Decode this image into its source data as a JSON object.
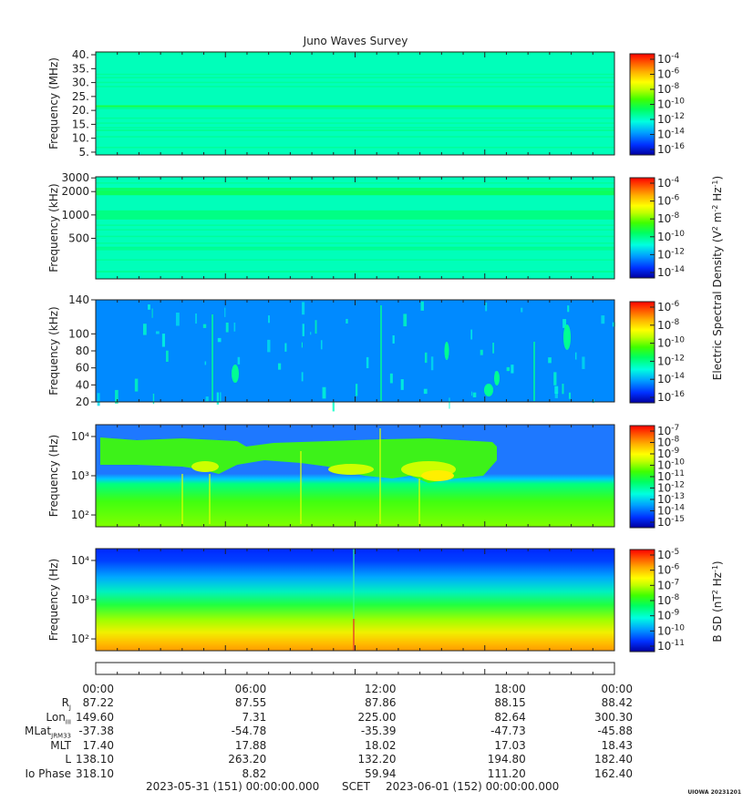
{
  "chart_data": {
    "type": "heatmap",
    "title": "Juno Waves Survey",
    "shared_ylabel": "Electric Spectral Density (V² m⁻² Hz⁻¹)",
    "colormap": [
      "#0000a0",
      "#0030ff",
      "#00a0ff",
      "#00ffe0",
      "#00ff60",
      "#40ff00",
      "#c0ff00",
      "#ffff00",
      "#ffb000",
      "#ff5000",
      "#ff0000"
    ],
    "panels": [
      {
        "ylabel": "Frequency (MHz)",
        "yscale": "linear",
        "ylim": [
          4,
          41
        ],
        "yticks": [
          5,
          10,
          15,
          20,
          25,
          30,
          35,
          40
        ],
        "yticklabels": [
          "5.",
          "10.",
          "15.",
          "20.",
          "25.",
          "30.",
          "35.",
          "40."
        ],
        "background_level": 0.33,
        "bands": [
          {
            "y": 21.5,
            "level": 0.45,
            "width": 2
          }
        ],
        "cb_ticks": [
          "-4",
          "-6",
          "-8",
          "-10",
          "-12",
          "-14",
          "-16"
        ],
        "cb_label": ""
      },
      {
        "ylabel": "Frequency (kHz)",
        "yscale": "log",
        "ylim": [
          150,
          3100
        ],
        "yticks": [
          500,
          1000,
          2000,
          3000
        ],
        "yticklabels": [
          "500",
          "1000",
          "2000",
          "3000"
        ],
        "background_level": 0.33,
        "bands": [
          {
            "y": 2000,
            "level": 0.42,
            "width": 8
          },
          {
            "y": 1000,
            "level": 0.38,
            "width": 10
          }
        ],
        "cb_ticks": [
          "-4",
          "-6",
          "-8",
          "-10",
          "-12",
          "-14"
        ],
        "cb_label": ""
      },
      {
        "ylabel": "Frequency (kHz)",
        "yscale": "linear",
        "ylim": [
          20,
          140
        ],
        "yticks": [
          20,
          40,
          60,
          80,
          100,
          140
        ],
        "yticklabels": [
          "20",
          "40",
          "60",
          "80",
          "100",
          "140"
        ],
        "background_level": 0.18,
        "bands": [],
        "cb_ticks": [
          "-6",
          "-8",
          "-10",
          "-12",
          "-14",
          "-16"
        ],
        "cb_label": ""
      },
      {
        "ylabel": "Frequency (Hz)",
        "yscale": "log",
        "ylim": [
          50,
          20000
        ],
        "yticks": [
          100,
          1000,
          10000
        ],
        "yticklabels": [
          "10²",
          "10³",
          "10⁴"
        ],
        "background_level": 0.22,
        "bands": [],
        "cb_ticks": [
          "-7",
          "-8",
          "-9",
          "-10",
          "-11",
          "-12",
          "-13",
          "-14",
          "-15"
        ],
        "cb_label": ""
      },
      {
        "ylabel": "Frequency (Hz)",
        "yscale": "log",
        "ylim": [
          50,
          20000
        ],
        "yticks": [
          100,
          1000,
          10000
        ],
        "yticklabels": [
          "10²",
          "10³",
          "10⁴"
        ],
        "background_level": 0.5,
        "bands": [],
        "cb_ticks": [
          "-5",
          "-6",
          "-7",
          "-8",
          "-9",
          "-10",
          "-11"
        ],
        "cb_label": "B SD (nT² Hz⁻¹)"
      }
    ],
    "x_ticks": [
      "00:00",
      "06:00",
      "12:00",
      "18:00",
      "00:00"
    ]
  },
  "ephemeris": {
    "rows": [
      {
        "label": "R",
        "sub": "J",
        "values": [
          "87.22",
          "87.55",
          "87.86",
          "88.15",
          "88.42"
        ]
      },
      {
        "label": "Lon",
        "sub": "III",
        "values": [
          "149.60",
          "7.31",
          "225.00",
          "82.64",
          "300.30"
        ]
      },
      {
        "label": "MLat",
        "sub": "JRM33",
        "values": [
          "-37.38",
          "-54.78",
          "-35.39",
          "-47.73",
          "-45.88"
        ]
      },
      {
        "label": "MLT",
        "sub": "",
        "values": [
          "17.40",
          "17.88",
          "18.02",
          "17.03",
          "18.43"
        ]
      },
      {
        "label": "L",
        "sub": "",
        "values": [
          "138.10",
          "263.20",
          "132.20",
          "194.80",
          "182.40"
        ]
      },
      {
        "label": "Io Phase",
        "sub": "",
        "values": [
          "318.10",
          "8.82",
          "59.94",
          "111.20",
          "162.40"
        ]
      }
    ]
  },
  "footer": {
    "start": "2023-05-31 (151) 00:00:00.000",
    "scet": "SCET",
    "end": "2023-06-01 (152) 00:00:00.000"
  },
  "stamp": "UIOWA 20231201"
}
